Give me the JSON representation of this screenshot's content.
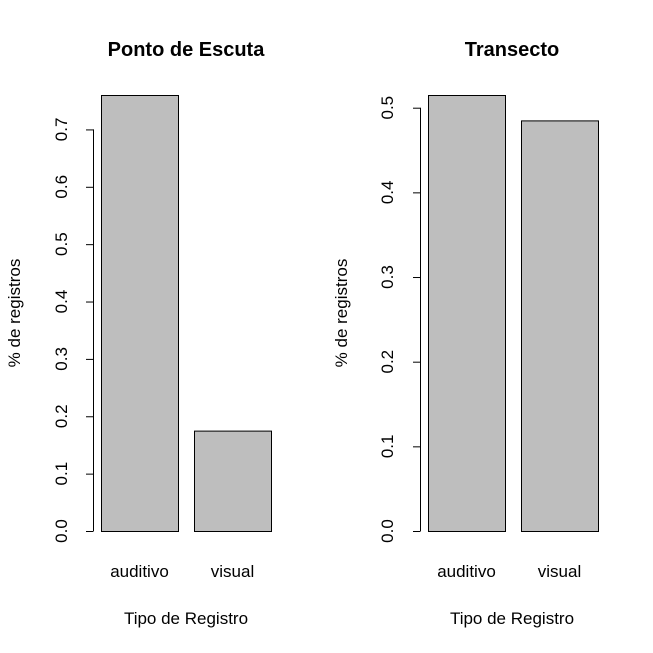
{
  "chart_data": [
    {
      "type": "bar",
      "title": "Ponto de Escuta",
      "xlabel": "Tipo de Registro",
      "ylabel": "% de registros",
      "categories": [
        "auditivo",
        "visual"
      ],
      "values": [
        0.76,
        0.175
      ],
      "ylim": [
        0,
        0.76
      ],
      "yticks": [
        0.0,
        0.1,
        0.2,
        0.3,
        0.4,
        0.5,
        0.6,
        0.7
      ],
      "ytick_labels": [
        "0.0",
        "0.1",
        "0.2",
        "0.3",
        "0.4",
        "0.5",
        "0.6",
        "0.7"
      ],
      "bar_color": "#bebebe",
      "grid": false
    },
    {
      "type": "bar",
      "title": "Transecto",
      "xlabel": "Tipo de Registro",
      "ylabel": "% de registros",
      "categories": [
        "auditivo",
        "visual"
      ],
      "values": [
        0.515,
        0.485
      ],
      "ylim": [
        0,
        0.515
      ],
      "yticks": [
        0.0,
        0.1,
        0.2,
        0.3,
        0.4,
        0.5
      ],
      "ytick_labels": [
        "0.0",
        "0.1",
        "0.2",
        "0.3",
        "0.4",
        "0.5"
      ],
      "bar_color": "#bebebe",
      "grid": false
    }
  ]
}
